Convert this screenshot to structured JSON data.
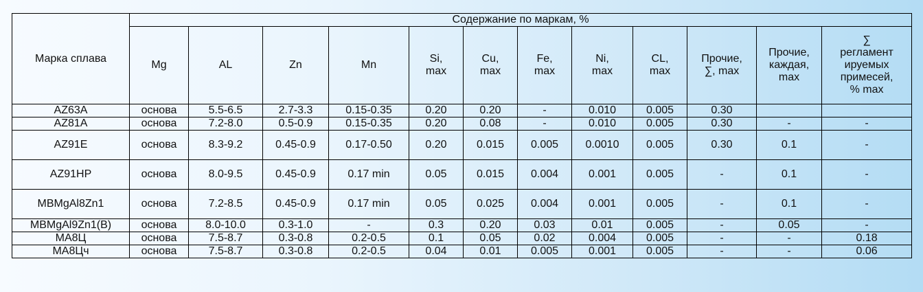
{
  "table": {
    "grade_header": "Марка сплава",
    "group_header": "Содержание по маркам, %",
    "columns": [
      "Mg",
      "AL",
      "Zn",
      "Mn",
      "Si,\nmax",
      "Cu,\nmax",
      "Fe,\nmax",
      "Ni,\nmax",
      "CL,\nmax",
      "Прочие,\n∑, max",
      "Прочие,\nкаждая,\nmax",
      "∑\nрегламент\nируемых\nпримесей,\n% max"
    ],
    "rows": [
      [
        "AZ63A",
        "основа",
        "5.5-6.5",
        "2.7-3.3",
        "0.15-0.35",
        "0.20",
        "0.20",
        "-",
        "0.010",
        "0.005",
        "0.30",
        "",
        ""
      ],
      [
        "AZ81A",
        "основа",
        "7.2-8.0",
        "0.5-0.9",
        "0.15-0.35",
        "0.20",
        "0.08",
        "-",
        "0.010",
        "0.005",
        "0.30",
        "-",
        "-"
      ],
      [
        "AZ91E",
        "основа",
        "8.3-9.2",
        "0.45-0.9",
        "0.17-0.50",
        "0.20",
        "0.015",
        "0.005",
        "0.0010",
        "0.005",
        "0.30",
        "0.1",
        "-"
      ],
      [
        "AZ91HP",
        "основа",
        "8.0-9.5",
        "0.45-0.9",
        "0.17 min",
        "0.05",
        "0.015",
        "0.004",
        "0.001",
        "0.005",
        "-",
        "0.1",
        "-"
      ],
      [
        "MBMgAl8Zn1",
        "основа",
        "7.2-8.5",
        "0.45-0.9",
        "0.17 min",
        "0.05",
        "0.025",
        "0.004",
        "0.001",
        "0.005",
        "-",
        "0.1",
        "-"
      ],
      [
        "MBMgAl9Zn1(B)",
        "основа",
        "8.0-10.0",
        "0.3-1.0",
        "-",
        "0.3",
        "0.20",
        "0.03",
        "0.01",
        "0.005",
        "-",
        "0.05",
        "-"
      ],
      [
        "МА8Ц",
        "основа",
        "7.5-8.7",
        "0.3-0.8",
        "0.2-0.5",
        "0.1",
        "0.05",
        "0.02",
        "0.004",
        "0.005",
        "-",
        "-",
        "0.18"
      ],
      [
        "МА8Цч",
        "основа",
        "7.5-8.7",
        "0.3-0.8",
        "0.2-0.5",
        "0.04",
        "0.01",
        "0.005",
        "0.001",
        "0.005",
        "-",
        "-",
        "0.06"
      ]
    ]
  }
}
